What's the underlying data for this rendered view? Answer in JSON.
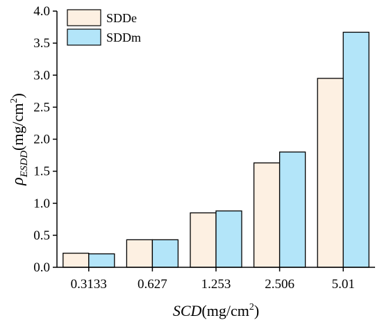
{
  "chart_data": {
    "type": "bar",
    "categories": [
      "0.3133",
      "0.627",
      "1.253",
      "2.506",
      "5.01"
    ],
    "series": [
      {
        "name": "SDDe",
        "values": [
          0.22,
          0.43,
          0.85,
          1.63,
          2.95
        ],
        "color": "#fdf0e2"
      },
      {
        "name": "SDDm",
        "values": [
          0.21,
          0.43,
          0.88,
          1.8,
          3.67
        ],
        "color": "#b3e5f9"
      }
    ],
    "xlabel": {
      "main": "SCD",
      "unit_pre": "(mg/cm",
      "unit_sup": "2",
      "unit_post": ")"
    },
    "ylabel": {
      "main": "ρ",
      "sub": "ESDD",
      "unit_pre": "(mg/cm",
      "unit_sup": "2",
      "unit_post": ")"
    },
    "yticks": [
      "0.0",
      "0.5",
      "1.0",
      "1.5",
      "2.0",
      "2.5",
      "3.0",
      "3.5",
      "4.0"
    ],
    "ylim": [
      0,
      4.0
    ],
    "grid": false,
    "legend_position": "top-left"
  }
}
